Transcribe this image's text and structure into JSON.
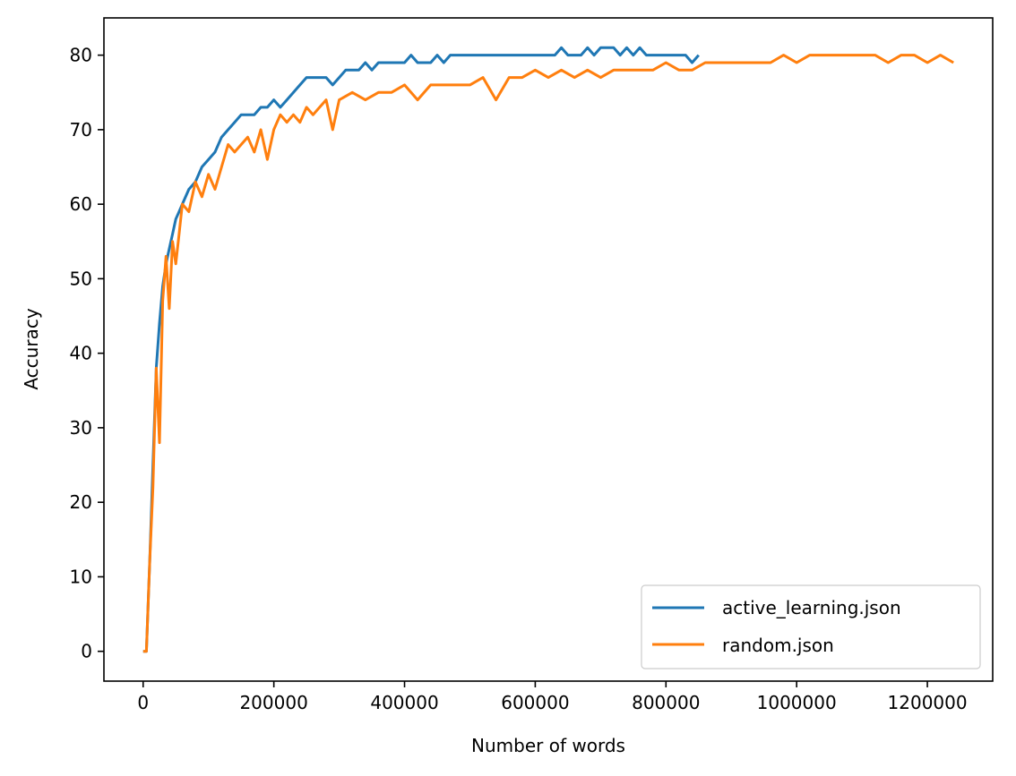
{
  "chart_data": {
    "type": "line",
    "title": "",
    "xlabel": "Number of words",
    "ylabel": "Accuracy",
    "xlim": [
      -60000,
      1300000
    ],
    "ylim": [
      -4,
      85
    ],
    "xticks": [
      0,
      200000,
      400000,
      600000,
      800000,
      1000000,
      1200000
    ],
    "xtick_labels": [
      "0",
      "200000",
      "400000",
      "600000",
      "800000",
      "1000000",
      "1200000"
    ],
    "yticks": [
      0,
      10,
      20,
      30,
      40,
      50,
      60,
      70,
      80
    ],
    "ytick_labels": [
      "0",
      "10",
      "20",
      "30",
      "40",
      "50",
      "60",
      "70",
      "80"
    ],
    "grid": false,
    "legend_position": "lower-right",
    "series": [
      {
        "name": "active_learning.json",
        "color": "#1f77b4",
        "x": [
          0,
          5000,
          10000,
          15000,
          20000,
          25000,
          30000,
          35000,
          40000,
          45000,
          50000,
          55000,
          60000,
          70000,
          80000,
          90000,
          100000,
          110000,
          120000,
          130000,
          140000,
          150000,
          160000,
          170000,
          180000,
          190000,
          200000,
          210000,
          220000,
          230000,
          240000,
          250000,
          260000,
          270000,
          280000,
          290000,
          300000,
          310000,
          320000,
          330000,
          340000,
          350000,
          360000,
          370000,
          380000,
          390000,
          400000,
          410000,
          420000,
          430000,
          440000,
          450000,
          460000,
          470000,
          480000,
          490000,
          500000,
          510000,
          520000,
          530000,
          540000,
          550000,
          560000,
          570000,
          580000,
          590000,
          600000,
          610000,
          620000,
          630000,
          640000,
          650000,
          660000,
          670000,
          680000,
          690000,
          700000,
          710000,
          720000,
          730000,
          740000,
          750000,
          760000,
          770000,
          780000,
          790000,
          800000,
          810000,
          820000,
          830000,
          840000,
          850000
        ],
        "y": [
          0,
          0,
          12,
          25,
          38,
          44,
          49,
          52,
          54,
          56,
          58,
          59,
          60,
          62,
          63,
          65,
          66,
          67,
          69,
          70,
          71,
          72,
          72,
          72,
          73,
          73,
          74,
          73,
          74,
          75,
          76,
          77,
          77,
          77,
          77,
          76,
          77,
          78,
          78,
          78,
          79,
          78,
          79,
          79,
          79,
          79,
          79,
          80,
          79,
          79,
          79,
          80,
          79,
          80,
          80,
          80,
          80,
          80,
          80,
          80,
          80,
          80,
          80,
          80,
          80,
          80,
          80,
          80,
          80,
          80,
          81,
          80,
          80,
          80,
          81,
          80,
          81,
          81,
          81,
          80,
          81,
          80,
          81,
          80,
          80,
          80,
          80,
          80,
          80,
          80,
          79,
          80
        ]
      },
      {
        "name": "random.json",
        "color": "#ff7f0e",
        "x": [
          0,
          5000,
          10000,
          15000,
          20000,
          25000,
          30000,
          35000,
          40000,
          45000,
          50000,
          55000,
          60000,
          70000,
          80000,
          90000,
          100000,
          110000,
          120000,
          130000,
          140000,
          150000,
          160000,
          170000,
          180000,
          190000,
          200000,
          210000,
          220000,
          230000,
          240000,
          250000,
          260000,
          270000,
          280000,
          290000,
          300000,
          320000,
          340000,
          360000,
          380000,
          400000,
          420000,
          440000,
          460000,
          480000,
          500000,
          520000,
          540000,
          560000,
          580000,
          600000,
          620000,
          640000,
          660000,
          680000,
          700000,
          720000,
          740000,
          760000,
          780000,
          800000,
          820000,
          840000,
          860000,
          880000,
          900000,
          920000,
          940000,
          960000,
          980000,
          1000000,
          1020000,
          1040000,
          1060000,
          1080000,
          1100000,
          1120000,
          1140000,
          1160000,
          1180000,
          1200000,
          1220000,
          1240000
        ],
        "y": [
          0,
          0,
          12,
          22,
          38,
          28,
          47,
          53,
          46,
          55,
          52,
          56,
          60,
          59,
          63,
          61,
          64,
          62,
          65,
          68,
          67,
          68,
          69,
          67,
          70,
          66,
          70,
          72,
          71,
          72,
          71,
          73,
          72,
          73,
          74,
          70,
          74,
          75,
          74,
          75,
          75,
          76,
          74,
          76,
          76,
          76,
          76,
          77,
          74,
          77,
          77,
          78,
          77,
          78,
          77,
          78,
          77,
          78,
          78,
          78,
          78,
          79,
          78,
          78,
          79,
          79,
          79,
          79,
          79,
          79,
          80,
          79,
          80,
          80,
          80,
          80,
          80,
          80,
          79,
          80,
          80,
          79,
          80,
          79
        ]
      }
    ]
  }
}
